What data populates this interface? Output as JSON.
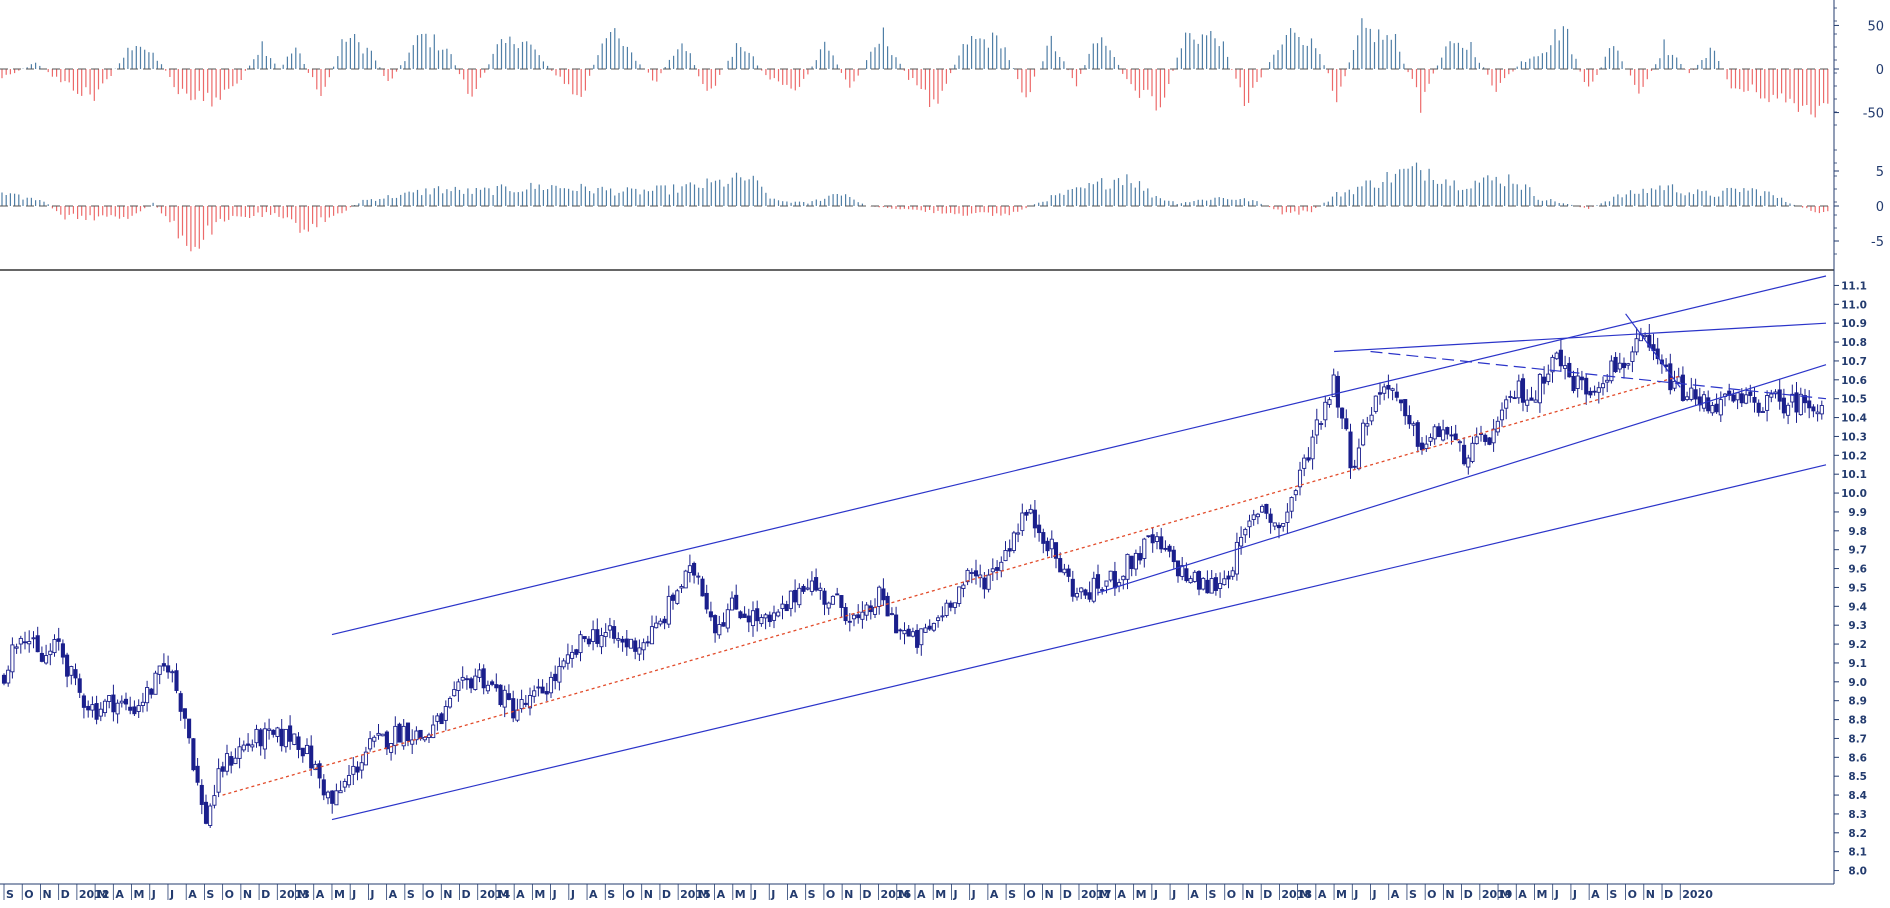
{
  "colors": {
    "background": "#ffffff",
    "up": "#4f7ea6",
    "down": "#ec6a6a",
    "candle": "#1a1f8c",
    "trendline": "#2b34c9",
    "midline": "#e24b2a",
    "axis": "#1a1a1a",
    "axis_text": "#233b6e"
  },
  "chart_data": [
    {
      "type": "bar",
      "panel": "top-oscillator",
      "title": "",
      "xlabel": "",
      "ylabel": "",
      "ylim": [
        -70,
        70
      ],
      "y_ticks": [
        "50",
        "0",
        "-50"
      ],
      "zero_line": "dashed",
      "x": {
        "start_week": 0,
        "end_week": 435
      },
      "values_description": "weekly histogram, blue above zero, red below",
      "envelope_knots": [
        [
          0,
          -12
        ],
        [
          8,
          8
        ],
        [
          14,
          -18
        ],
        [
          22,
          -40
        ],
        [
          26,
          -8
        ],
        [
          32,
          42
        ],
        [
          38,
          6
        ],
        [
          42,
          -30
        ],
        [
          50,
          -48
        ],
        [
          56,
          -22
        ],
        [
          62,
          36
        ],
        [
          66,
          0
        ],
        [
          70,
          30
        ],
        [
          76,
          -40
        ],
        [
          82,
          48
        ],
        [
          88,
          24
        ],
        [
          92,
          -20
        ],
        [
          100,
          48
        ],
        [
          106,
          30
        ],
        [
          112,
          -42
        ],
        [
          118,
          30
        ],
        [
          124,
          46
        ],
        [
          130,
          4
        ],
        [
          138,
          -45
        ],
        [
          144,
          58
        ],
        [
          150,
          20
        ],
        [
          156,
          -20
        ],
        [
          162,
          48
        ],
        [
          168,
          -38
        ],
        [
          176,
          38
        ],
        [
          182,
          -10
        ],
        [
          190,
          -30
        ],
        [
          196,
          40
        ],
        [
          202,
          -28
        ],
        [
          210,
          48
        ],
        [
          216,
          -12
        ],
        [
          222,
          -50
        ],
        [
          230,
          40
        ],
        [
          238,
          42
        ],
        [
          244,
          -40
        ],
        [
          250,
          40
        ],
        [
          256,
          -22
        ],
        [
          262,
          58
        ],
        [
          268,
          -20
        ],
        [
          276,
          -55
        ],
        [
          282,
          48
        ],
        [
          290,
          46
        ],
        [
          296,
          -48
        ],
        [
          302,
          10
        ],
        [
          308,
          60
        ],
        [
          314,
          24
        ],
        [
          318,
          -40
        ],
        [
          324,
          56
        ],
        [
          332,
          40
        ],
        [
          338,
          -48
        ],
        [
          344,
          30
        ],
        [
          350,
          34
        ],
        [
          356,
          -30
        ],
        [
          362,
          10
        ],
        [
          368,
          32
        ],
        [
          372,
          62
        ],
        [
          378,
          -36
        ],
        [
          384,
          40
        ],
        [
          390,
          -40
        ],
        [
          396,
          34
        ],
        [
          402,
          -8
        ],
        [
          408,
          30
        ],
        [
          412,
          -28
        ],
        [
          418,
          -32
        ],
        [
          424,
          -45
        ],
        [
          430,
          -55
        ],
        [
          435,
          -52
        ]
      ]
    },
    {
      "type": "bar",
      "panel": "middle-oscillator",
      "title": "",
      "xlabel": "",
      "ylabel": "",
      "ylim": [
        -8,
        8
      ],
      "y_ticks": [
        "5",
        "0",
        "-5"
      ],
      "zero_line": "dashed",
      "x": {
        "start_week": 0,
        "end_week": 435
      },
      "values_description": "weekly histogram, blue above zero, red below",
      "envelope_knots": [
        [
          0,
          2
        ],
        [
          10,
          1
        ],
        [
          14,
          -2
        ],
        [
          24,
          -2
        ],
        [
          30,
          -2
        ],
        [
          36,
          0.5
        ],
        [
          40,
          -3
        ],
        [
          46,
          -7.5
        ],
        [
          50,
          -4
        ],
        [
          56,
          -2
        ],
        [
          64,
          -1.5
        ],
        [
          72,
          -4
        ],
        [
          80,
          -1.5
        ],
        [
          86,
          1
        ],
        [
          96,
          2
        ],
        [
          104,
          3
        ],
        [
          112,
          2.5
        ],
        [
          120,
          3
        ],
        [
          130,
          3.5
        ],
        [
          140,
          3
        ],
        [
          150,
          2.5
        ],
        [
          160,
          3
        ],
        [
          170,
          4
        ],
        [
          178,
          5
        ],
        [
          184,
          1
        ],
        [
          192,
          0.5
        ],
        [
          200,
          2.5
        ],
        [
          206,
          0
        ],
        [
          214,
          -0.5
        ],
        [
          222,
          -1
        ],
        [
          232,
          -1.5
        ],
        [
          240,
          -1.5
        ],
        [
          250,
          1.5
        ],
        [
          260,
          3.5
        ],
        [
          268,
          5.5
        ],
        [
          274,
          2
        ],
        [
          280,
          0.5
        ],
        [
          290,
          1.5
        ],
        [
          298,
          1
        ],
        [
          306,
          -1.5
        ],
        [
          312,
          -1
        ],
        [
          318,
          2
        ],
        [
          326,
          4
        ],
        [
          334,
          6
        ],
        [
          340,
          6.5
        ],
        [
          346,
          4
        ],
        [
          354,
          4.5
        ],
        [
          360,
          5
        ],
        [
          366,
          1.5
        ],
        [
          372,
          0.5
        ],
        [
          378,
          -0.5
        ],
        [
          384,
          1.5
        ],
        [
          390,
          2.5
        ],
        [
          396,
          3.5
        ],
        [
          402,
          2.5
        ],
        [
          408,
          2
        ],
        [
          414,
          3
        ],
        [
          420,
          2.5
        ],
        [
          426,
          0.5
        ],
        [
          432,
          -1
        ]
      ]
    },
    {
      "type": "candlestick",
      "panel": "price",
      "title": "",
      "xlabel": "",
      "ylabel": "",
      "ylim": [
        7.95,
        11.15
      ],
      "y_ticks": [
        "11.1",
        "11.0",
        "10.9",
        "10.8",
        "10.7",
        "10.6",
        "10.5",
        "10.4",
        "10.3",
        "10.2",
        "10.1",
        "10.0",
        "9.9",
        "9.8",
        "9.7",
        "9.6",
        "9.5",
        "9.4",
        "9.3",
        "9.2",
        "9.1",
        "9.0",
        "8.9",
        "8.8",
        "8.7",
        "8.6",
        "8.5",
        "8.4",
        "8.3",
        "8.2",
        "8.1",
        "8.0"
      ],
      "x_ticks": [
        "S",
        "O",
        "N",
        "D",
        "2012",
        "M",
        "A",
        "M",
        "J",
        "J",
        "A",
        "S",
        "O",
        "N",
        "D",
        "2013",
        "M",
        "A",
        "M",
        "J",
        "J",
        "A",
        "S",
        "O",
        "N",
        "D",
        "2014",
        "M",
        "A",
        "M",
        "J",
        "J",
        "A",
        "S",
        "O",
        "N",
        "D",
        "2015",
        "M",
        "A",
        "M",
        "J",
        "J",
        "A",
        "S",
        "O",
        "N",
        "D",
        "2016",
        "M",
        "A",
        "M",
        "J",
        "J",
        "A",
        "S",
        "O",
        "N",
        "D",
        "2017",
        "M",
        "A",
        "M",
        "J",
        "J",
        "A",
        "S",
        "O",
        "N",
        "D",
        "2018",
        "M",
        "A",
        "M",
        "J",
        "J",
        "A",
        "S",
        "O",
        "N",
        "D",
        "2019",
        "M",
        "A",
        "M",
        "J",
        "J",
        "A",
        "S",
        "O",
        "N",
        "D",
        "2020"
      ],
      "x": {
        "start": "2011-09",
        "end": "2020-01",
        "unit": "week"
      },
      "price_path_knots": [
        [
          "2011-09",
          9.05
        ],
        [
          "2011-10",
          9.3
        ],
        [
          "2011-11",
          9.1
        ],
        [
          "2011-12",
          9.2
        ],
        [
          "2012-01",
          8.95
        ],
        [
          "2012-02",
          8.85
        ],
        [
          "2012-03",
          8.9
        ],
        [
          "2012-04",
          8.85
        ],
        [
          "2012-05",
          8.95
        ],
        [
          "2012-06",
          9.1
        ],
        [
          "2012-07",
          8.8
        ],
        [
          "2012-08",
          8.25
        ],
        [
          "2012-09",
          8.55
        ],
        [
          "2012-10",
          8.65
        ],
        [
          "2012-11",
          8.7
        ],
        [
          "2012-12",
          8.7
        ],
        [
          "2013-01",
          8.72
        ],
        [
          "2013-02",
          8.55
        ],
        [
          "2013-03",
          8.35
        ],
        [
          "2013-04",
          8.5
        ],
        [
          "2013-05",
          8.65
        ],
        [
          "2013-06",
          8.7
        ],
        [
          "2013-07",
          8.75
        ],
        [
          "2013-08",
          8.7
        ],
        [
          "2013-09",
          8.8
        ],
        [
          "2013-10",
          8.95
        ],
        [
          "2013-11",
          9.05
        ],
        [
          "2013-12",
          8.95
        ],
        [
          "2014-01",
          8.85
        ],
        [
          "2014-02",
          8.9
        ],
        [
          "2014-03",
          9.0
        ],
        [
          "2014-04",
          9.1
        ],
        [
          "2014-05",
          9.25
        ],
        [
          "2014-06",
          9.25
        ],
        [
          "2014-07",
          9.2
        ],
        [
          "2014-08",
          9.2
        ],
        [
          "2014-09",
          9.3
        ],
        [
          "2014-10",
          9.5
        ],
        [
          "2014-11",
          9.6
        ],
        [
          "2014-12",
          9.3
        ],
        [
          "2015-01",
          9.4
        ],
        [
          "2015-02",
          9.35
        ],
        [
          "2015-03",
          9.3
        ],
        [
          "2015-04",
          9.4
        ],
        [
          "2015-05",
          9.55
        ],
        [
          "2015-06",
          9.45
        ],
        [
          "2015-07",
          9.4
        ],
        [
          "2015-08",
          9.3
        ],
        [
          "2015-09",
          9.45
        ],
        [
          "2015-10",
          9.3
        ],
        [
          "2015-11",
          9.2
        ],
        [
          "2015-12",
          9.3
        ],
        [
          "2016-01",
          9.45
        ],
        [
          "2016-02",
          9.55
        ],
        [
          "2016-03",
          9.55
        ],
        [
          "2016-04",
          9.7
        ],
        [
          "2016-05",
          9.9
        ],
        [
          "2016-06",
          9.8
        ],
        [
          "2016-07",
          9.6
        ],
        [
          "2016-08",
          9.45
        ],
        [
          "2016-09",
          9.5
        ],
        [
          "2016-10",
          9.55
        ],
        [
          "2016-11",
          9.65
        ],
        [
          "2016-12",
          9.75
        ],
        [
          "2017-01",
          9.65
        ],
        [
          "2017-02",
          9.55
        ],
        [
          "2017-03",
          9.5
        ],
        [
          "2017-04",
          9.55
        ],
        [
          "2017-05",
          9.75
        ],
        [
          "2017-06",
          9.95
        ],
        [
          "2017-07",
          9.8
        ],
        [
          "2017-08",
          10.05
        ],
        [
          "2017-09",
          10.35
        ],
        [
          "2017-10",
          10.6
        ],
        [
          "2017-11",
          10.15
        ],
        [
          "2017-12",
          10.45
        ],
        [
          "2018-01",
          10.6
        ],
        [
          "2018-02",
          10.35
        ],
        [
          "2018-03",
          10.25
        ],
        [
          "2018-04",
          10.35
        ],
        [
          "2018-05",
          10.2
        ],
        [
          "2018-06",
          10.25
        ],
        [
          "2018-07",
          10.35
        ],
        [
          "2018-08",
          10.55
        ],
        [
          "2018-09",
          10.5
        ],
        [
          "2018-10",
          10.75
        ],
        [
          "2018-11",
          10.6
        ],
        [
          "2018-12",
          10.55
        ],
        [
          "2019-01",
          10.65
        ],
        [
          "2019-02",
          10.7
        ],
        [
          "2019-03",
          10.8
        ],
        [
          "2019-04",
          10.65
        ],
        [
          "2019-05",
          10.55
        ],
        [
          "2019-06",
          10.48
        ]
      ],
      "trendlines": [
        {
          "style": "solid",
          "from": [
            "2013-03",
            9.25
          ],
          "to": [
            "2020-01",
            11.15
          ]
        },
        {
          "style": "solid",
          "from": [
            "2013-03",
            8.27
          ],
          "to": [
            "2020-01",
            10.15
          ]
        },
        {
          "style": "dotted",
          "from": [
            "2012-09",
            8.4
          ],
          "to": [
            "2019-05",
            10.62
          ]
        },
        {
          "style": "solid",
          "from": [
            "2016-09",
            9.47
          ],
          "to": [
            "2020-01",
            10.68
          ]
        },
        {
          "style": "solid",
          "from": [
            "2017-10",
            10.75
          ],
          "to": [
            "2020-01",
            10.9
          ]
        },
        {
          "style": "dashed",
          "from": [
            "2017-12",
            10.75
          ],
          "to": [
            "2020-01",
            10.5
          ]
        },
        {
          "style": "solid",
          "from": [
            "2019-02",
            10.95
          ],
          "to": [
            "2019-05",
            10.56
          ]
        }
      ]
    }
  ]
}
